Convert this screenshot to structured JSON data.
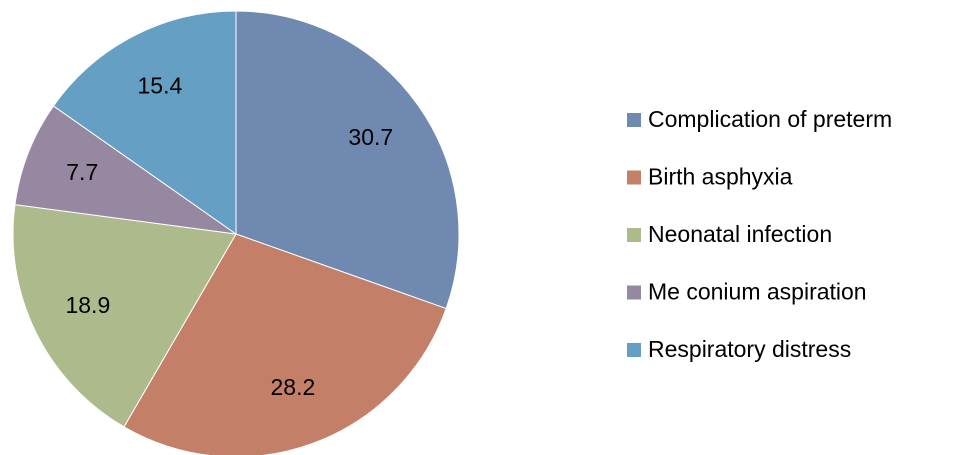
{
  "chart_data": {
    "type": "pie",
    "categories": [
      "Complication of preterm",
      "Birth asphyxia",
      "Neonatal infection",
      "Me conium aspiration",
      "Respiratory distress"
    ],
    "values": [
      30.7,
      28.2,
      18.9,
      7.7,
      15.4
    ],
    "colors": [
      "#7089b0",
      "#c47f69",
      "#adbb8c",
      "#9688a0",
      "#659fc4"
    ],
    "legend": "right"
  }
}
